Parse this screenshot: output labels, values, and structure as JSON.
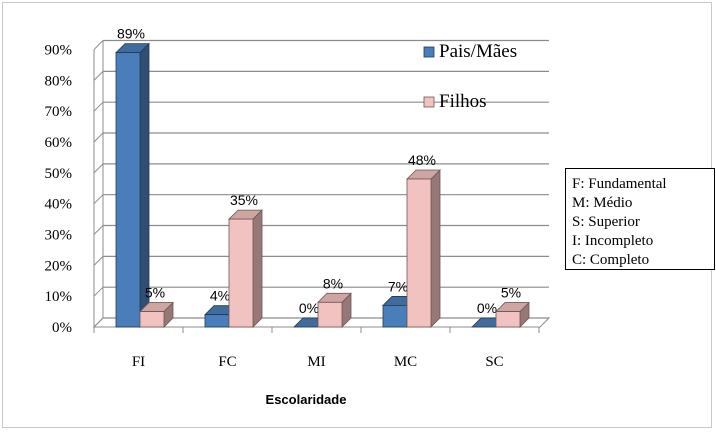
{
  "chart_data": {
    "type": "bar",
    "categories": [
      "FI",
      "FC",
      "MI",
      "MC",
      "SC"
    ],
    "series": [
      {
        "name": "Pais/Mães",
        "values": [
          89,
          4,
          0,
          7,
          0
        ],
        "labels": [
          "89%",
          "4%",
          "0%",
          "7%",
          "0%"
        ],
        "color": "#4a7ebb"
      },
      {
        "name": "Filhos",
        "values": [
          5,
          35,
          8,
          48,
          5
        ],
        "labels": [
          "5%",
          "35%",
          "8%",
          "48%",
          "5%"
        ],
        "color": "#f2c2c0"
      }
    ],
    "yticks": [
      "0%",
      "10%",
      "20%",
      "30%",
      "40%",
      "50%",
      "60%",
      "70%",
      "80%",
      "90%"
    ],
    "ylim": [
      0,
      90
    ],
    "xlabel": "Escolaridade",
    "ylabel": "",
    "title": "",
    "grid": true,
    "style": "3d-clustered-column",
    "legend_position": "top-right"
  },
  "abbreviations": [
    "F: Fundamental",
    "M: Médio",
    "S: Superior",
    "I: Incompleto",
    "C: Completo"
  ]
}
